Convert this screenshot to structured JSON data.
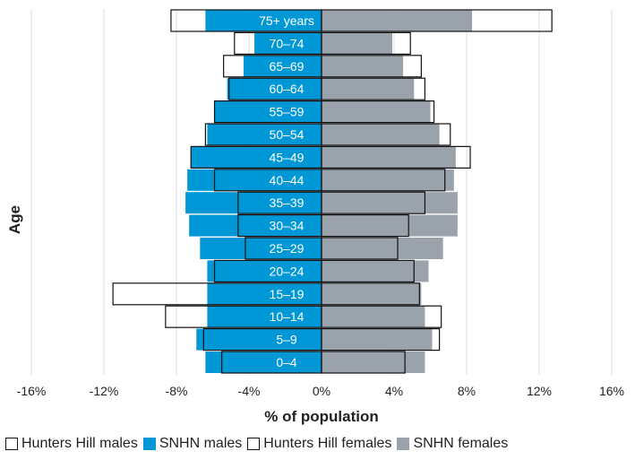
{
  "chart_data": {
    "type": "bar",
    "orientation": "horizontal-population-pyramid",
    "categories": [
      "0-4",
      "5-9",
      "10-14",
      "15-19",
      "20-24",
      "25-29",
      "30-34",
      "35-39",
      "40-44",
      "45-49",
      "50-54",
      "55-59",
      "60-64",
      "65-69",
      "70-74",
      "75+ years"
    ],
    "category_labels": [
      "0–4",
      "5–9",
      "10–14",
      "15–19",
      "20–24",
      "25–29",
      "30–34",
      "35–39",
      "40–44",
      "45–49",
      "50–54",
      "55–59",
      "60–64",
      "65–69",
      "70–74",
      "75+ years"
    ],
    "series": [
      {
        "name": "Hunters Hill males",
        "side": "left",
        "style": "outline",
        "values": [
          5.5,
          6.5,
          8.6,
          11.5,
          5.9,
          4.2,
          4.6,
          4.6,
          5.9,
          7.2,
          6.4,
          5.9,
          5.1,
          5.4,
          4.8,
          8.3
        ]
      },
      {
        "name": "SNHN males",
        "side": "left",
        "style": "filled",
        "values": [
          6.4,
          6.9,
          6.3,
          6.3,
          6.3,
          6.7,
          7.3,
          7.5,
          7.4,
          7.2,
          6.3,
          5.9,
          5.2,
          4.3,
          3.7,
          6.4
        ]
      },
      {
        "name": "Hunters Hill females",
        "side": "right",
        "style": "outline",
        "values": [
          4.6,
          6.5,
          6.6,
          5.4,
          5.1,
          4.2,
          4.8,
          5.7,
          6.8,
          8.2,
          7.1,
          6.2,
          5.7,
          5.5,
          4.9,
          12.7
        ]
      },
      {
        "name": "SNHN females",
        "side": "right",
        "style": "filled",
        "values": [
          5.7,
          6.1,
          5.7,
          5.5,
          5.9,
          6.7,
          7.5,
          7.5,
          7.3,
          7.4,
          6.5,
          6.0,
          5.1,
          4.5,
          3.9,
          8.3
        ]
      }
    ],
    "xlabel": "% of population",
    "ylabel": "Age",
    "xlim": [
      -16,
      16
    ],
    "xticks": [
      -16,
      -12,
      -8,
      -4,
      0,
      4,
      8,
      12,
      16
    ],
    "xtick_labels": [
      "-16%",
      "-12%",
      "-8%",
      "-4%",
      "0%",
      "4%",
      "8%",
      "12%",
      "16%"
    ],
    "grid": "vertical",
    "legend": "bottom"
  },
  "colors": {
    "snhn_males": "#0097d6",
    "snhn_females": "#9aa2ab",
    "outline": "#111111",
    "grid": "#dddddd"
  }
}
